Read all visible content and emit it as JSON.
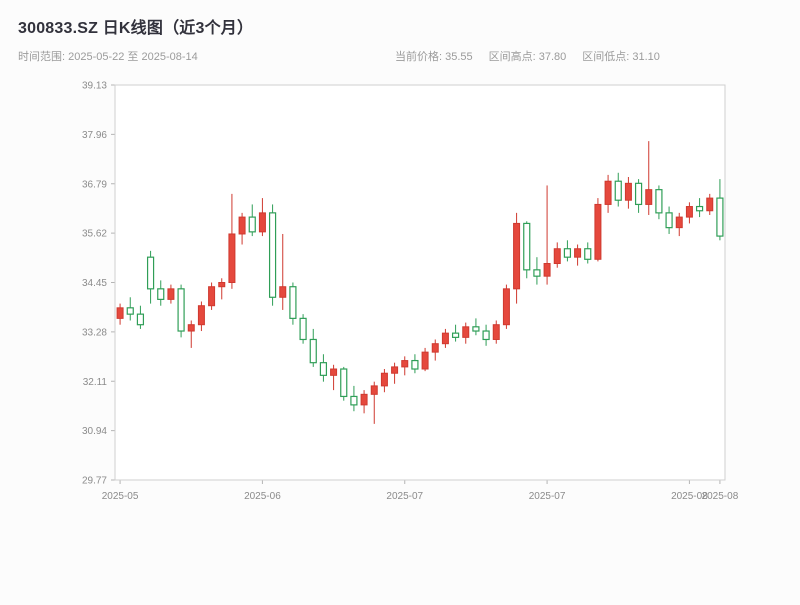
{
  "header": {
    "title": "300833.SZ 日K线图（近3个月）",
    "subtitle_left": "时间范围: 2025-05-22 至 2025-08-14",
    "info_current": "当前价格: 35.55",
    "info_high": "区间高点: 37.80",
    "info_low": "区间低点: 31.10"
  },
  "chart_data": {
    "type": "candlestick",
    "title": "300833.SZ 日K线图（近3个月）",
    "date_range": [
      "2025-05-22",
      "2025-08-14"
    ],
    "current_price": 35.55,
    "range_high": 37.8,
    "range_low": 31.1,
    "ylim": [
      29.77,
      39.13
    ],
    "yticks": [
      29.77,
      30.94,
      32.11,
      33.28,
      34.45,
      35.62,
      36.79,
      37.96,
      39.13
    ],
    "xticks": [
      {
        "i": 0,
        "label": "2025-05"
      },
      {
        "i": 14,
        "label": "2025-06"
      },
      {
        "i": 28,
        "label": "2025-07"
      },
      {
        "i": 42,
        "label": "2025-07"
      },
      {
        "i": 56,
        "label": "2025-08"
      },
      {
        "i": 59,
        "label": "2025-08"
      }
    ],
    "grid": false,
    "legend": "none",
    "colors": {
      "up": "#e5483d",
      "up_edge": "#cf392f",
      "down": "#2f9e57",
      "plot_border": "#cfcfcf",
      "axis_text": "#8b8b8b",
      "plot_bg": "#ffffff"
    },
    "candles": [
      [
        "2025-05-22",
        33.6,
        33.95,
        33.45,
        33.85
      ],
      [
        "2025-05-23",
        33.85,
        34.1,
        33.55,
        33.7
      ],
      [
        "2025-05-26",
        33.7,
        33.9,
        33.35,
        33.45
      ],
      [
        "2025-05-27",
        35.05,
        35.2,
        33.95,
        34.3
      ],
      [
        "2025-05-28",
        34.3,
        34.5,
        33.9,
        34.05
      ],
      [
        "2025-05-29",
        34.05,
        34.4,
        33.95,
        34.3
      ],
      [
        "2025-05-30",
        34.3,
        34.4,
        33.15,
        33.3
      ],
      [
        "2025-06-03",
        33.3,
        33.55,
        32.9,
        33.45
      ],
      [
        "2025-06-04",
        33.45,
        34.0,
        33.3,
        33.9
      ],
      [
        "2025-06-05",
        33.9,
        34.45,
        33.8,
        34.35
      ],
      [
        "2025-06-06",
        34.35,
        34.55,
        34.05,
        34.45
      ],
      [
        "2025-06-09",
        34.45,
        36.55,
        34.3,
        35.6
      ],
      [
        "2025-06-10",
        35.6,
        36.1,
        35.35,
        36.0
      ],
      [
        "2025-06-11",
        36.0,
        36.3,
        35.55,
        35.65
      ],
      [
        "2025-06-12",
        35.65,
        36.45,
        35.55,
        36.1
      ],
      [
        "2025-06-13",
        36.1,
        36.3,
        33.9,
        34.1
      ],
      [
        "2025-06-16",
        34.1,
        35.6,
        33.8,
        34.35
      ],
      [
        "2025-06-17",
        34.35,
        34.45,
        33.45,
        33.6
      ],
      [
        "2025-06-18",
        33.6,
        33.7,
        33.0,
        33.1
      ],
      [
        "2025-06-19",
        33.1,
        33.35,
        32.45,
        32.55
      ],
      [
        "2025-06-20",
        32.55,
        32.75,
        32.1,
        32.25
      ],
      [
        "2025-06-23",
        32.25,
        32.5,
        31.9,
        32.4
      ],
      [
        "2025-06-24",
        32.4,
        32.45,
        31.65,
        31.75
      ],
      [
        "2025-06-25",
        31.75,
        32.0,
        31.4,
        31.55
      ],
      [
        "2025-06-26",
        31.55,
        31.9,
        31.35,
        31.8
      ],
      [
        "2025-06-27",
        31.8,
        32.1,
        31.1,
        32.0
      ],
      [
        "2025-06-30",
        32.0,
        32.4,
        31.85,
        32.3
      ],
      [
        "2025-07-01",
        32.3,
        32.55,
        32.05,
        32.45
      ],
      [
        "2025-07-02",
        32.45,
        32.7,
        32.25,
        32.6
      ],
      [
        "2025-07-03",
        32.6,
        32.75,
        32.3,
        32.4
      ],
      [
        "2025-07-04",
        32.4,
        32.9,
        32.35,
        32.8
      ],
      [
        "2025-07-07",
        32.8,
        33.1,
        32.6,
        33.0
      ],
      [
        "2025-07-08",
        33.0,
        33.35,
        32.9,
        33.25
      ],
      [
        "2025-07-09",
        33.25,
        33.45,
        33.05,
        33.15
      ],
      [
        "2025-07-10",
        33.15,
        33.5,
        33.0,
        33.4
      ],
      [
        "2025-07-11",
        33.4,
        33.6,
        33.2,
        33.3
      ],
      [
        "2025-07-14",
        33.3,
        33.45,
        32.95,
        33.1
      ],
      [
        "2025-07-15",
        33.1,
        33.55,
        33.0,
        33.45
      ],
      [
        "2025-07-16",
        33.45,
        34.4,
        33.35,
        34.3
      ],
      [
        "2025-07-17",
        34.3,
        36.1,
        33.95,
        35.85
      ],
      [
        "2025-07-18",
        35.85,
        35.9,
        34.55,
        34.75
      ],
      [
        "2025-07-21",
        34.75,
        35.05,
        34.4,
        34.6
      ],
      [
        "2025-07-22",
        34.6,
        36.75,
        34.4,
        34.9
      ],
      [
        "2025-07-23",
        34.9,
        35.4,
        34.8,
        35.25
      ],
      [
        "2025-07-24",
        35.25,
        35.45,
        34.95,
        35.05
      ],
      [
        "2025-07-25",
        35.05,
        35.35,
        34.85,
        35.25
      ],
      [
        "2025-07-28",
        35.25,
        35.4,
        34.9,
        35.0
      ],
      [
        "2025-07-29",
        35.0,
        36.45,
        34.95,
        36.3
      ],
      [
        "2025-07-30",
        36.3,
        37.0,
        36.1,
        36.85
      ],
      [
        "2025-07-31",
        36.85,
        37.05,
        36.25,
        36.4
      ],
      [
        "2025-08-01",
        36.4,
        36.95,
        36.2,
        36.8
      ],
      [
        "2025-08-04",
        36.8,
        36.9,
        36.1,
        36.3
      ],
      [
        "2025-08-05",
        36.3,
        37.8,
        36.05,
        36.65
      ],
      [
        "2025-08-06",
        36.65,
        36.75,
        35.95,
        36.1
      ],
      [
        "2025-08-07",
        36.1,
        36.25,
        35.6,
        35.75
      ],
      [
        "2025-08-08",
        35.75,
        36.1,
        35.55,
        36.0
      ],
      [
        "2025-08-11",
        36.0,
        36.35,
        35.85,
        36.25
      ],
      [
        "2025-08-12",
        36.25,
        36.45,
        36.0,
        36.15
      ],
      [
        "2025-08-13",
        36.15,
        36.55,
        36.05,
        36.45
      ],
      [
        "2025-08-14",
        36.45,
        36.9,
        35.45,
        35.55
      ]
    ]
  }
}
